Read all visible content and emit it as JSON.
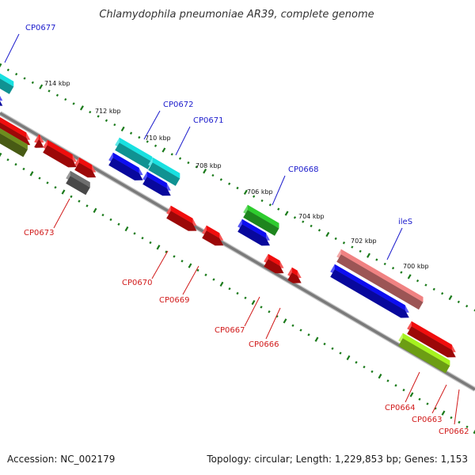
{
  "title": "Chlamydophila pneumoniae AR39, complete genome",
  "footer": {
    "accession": "Accession: NC_002179",
    "summary": "Topology: circular; Length: 1,229,853 bp; Genes: 1,153"
  },
  "ruler": [
    "714 kbp",
    "712 kbp",
    "710 kbp",
    "708 kbp",
    "706 kbp",
    "704 kbp",
    "702 kbp",
    "700 kbp"
  ],
  "colors": {
    "forward_label": "#1a1acc",
    "reverse_label": "#d11a1a",
    "backbone": "#7a7a7a",
    "tick": "#1a7a1a",
    "cyan": "#19e0e0",
    "blue": "#0d0df0",
    "red": "#f00d0d",
    "olive": "#6e8c1e",
    "gray": "#6e6e6e",
    "green": "#2ecc2e",
    "salmon": "#f08282",
    "lime": "#a6f21e"
  },
  "genes": [
    {
      "label": "CP0677",
      "strand": "forward"
    },
    {
      "label": "CP0672",
      "strand": "forward"
    },
    {
      "label": "CP0671",
      "strand": "forward"
    },
    {
      "label": "CP0668",
      "strand": "forward"
    },
    {
      "label": "ileS",
      "strand": "forward"
    },
    {
      "label": "CP0673",
      "strand": "reverse"
    },
    {
      "label": "CP0670",
      "strand": "reverse"
    },
    {
      "label": "CP0669",
      "strand": "reverse"
    },
    {
      "label": "CP0667",
      "strand": "reverse"
    },
    {
      "label": "CP0666",
      "strand": "reverse"
    },
    {
      "label": "CP0664",
      "strand": "reverse"
    },
    {
      "label": "CP0663",
      "strand": "reverse"
    },
    {
      "label": "CP0662",
      "strand": "reverse"
    }
  ]
}
